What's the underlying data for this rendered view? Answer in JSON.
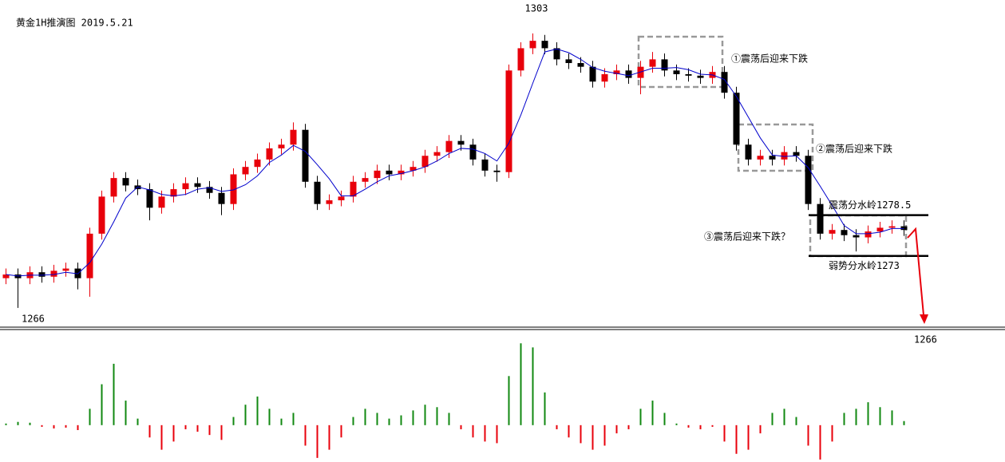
{
  "chart_data": {
    "type": "candlestick",
    "title": "黄金1H推演图  2019.5.21",
    "ylim": [
      1263.4,
      1307.5
    ],
    "up_color": "#e8000b",
    "down_color": "#000000",
    "open": [
      1270,
      1270.5,
      1270,
      1270.8,
      1270.2,
      1271,
      1271.3,
      1270,
      1276,
      1281,
      1283.5,
      1282.5,
      1282,
      1279.5,
      1281,
      1282,
      1282.8,
      1282.3,
      1281.5,
      1280,
      1284,
      1285,
      1286,
      1287.5,
      1288,
      1290,
      1283,
      1280,
      1280.5,
      1281,
      1283,
      1283.5,
      1284.5,
      1284,
      1284.5,
      1285,
      1286.5,
      1287,
      1288.5,
      1288,
      1286,
      1284.5,
      1284.3,
      1298,
      1301,
      1302,
      1301,
      1299.5,
      1299,
      1298.5,
      1296.5,
      1297.5,
      1298,
      1297,
      1298.5,
      1299.5,
      1298,
      1297.5,
      1297.3,
      1297,
      1297.8,
      1295,
      1288,
      1286,
      1286.5,
      1286,
      1287,
      1286.5,
      1280,
      1276,
      1276.5,
      1275.8,
      1275.5,
      1276.3,
      1276.8,
      1277
    ],
    "high": [
      1271.3,
      1271.3,
      1271.6,
      1271.6,
      1271.8,
      1272.1,
      1272.1,
      1276.8,
      1281.8,
      1284.3,
      1284.3,
      1283.3,
      1282.8,
      1281.8,
      1282.8,
      1283.6,
      1283.6,
      1283.1,
      1282.3,
      1284.8,
      1285.8,
      1286.8,
      1288.3,
      1288.8,
      1291,
      1290.8,
      1283.8,
      1281.3,
      1281.8,
      1283.8,
      1284.3,
      1285.3,
      1285.3,
      1285.3,
      1285.8,
      1287.3,
      1287.8,
      1289.3,
      1289.3,
      1288.8,
      1286.8,
      1285.3,
      1298.8,
      1301.8,
      1303,
      1302.8,
      1301.8,
      1300.3,
      1299.8,
      1299.3,
      1298.3,
      1298.8,
      1298.8,
      1299.3,
      1300.5,
      1300.3,
      1298.8,
      1298.3,
      1298.1,
      1298.6,
      1298.6,
      1295.8,
      1288.8,
      1287.3,
      1287.3,
      1287.8,
      1287.8,
      1287.3,
      1280.8,
      1277.3,
      1277.3,
      1276.6,
      1277.1,
      1277.6,
      1277.8,
      1277.8
    ],
    "low": [
      1269.2,
      1266,
      1269.2,
      1269.4,
      1269.4,
      1270.2,
      1268.5,
      1267.5,
      1275.2,
      1280.2,
      1281.7,
      1281.2,
      1277.8,
      1278.7,
      1280.2,
      1281.2,
      1281.5,
      1280.7,
      1278.5,
      1279.2,
      1283.2,
      1284.2,
      1285.2,
      1286.7,
      1287.2,
      1282.2,
      1279.2,
      1279.2,
      1279.7,
      1280.2,
      1282.2,
      1282.7,
      1283.2,
      1283.2,
      1283.7,
      1284.2,
      1285.7,
      1286.2,
      1287.2,
      1285.2,
      1283.7,
      1283,
      1283.5,
      1297.2,
      1300.2,
      1300.2,
      1298.7,
      1298.2,
      1297.7,
      1295.7,
      1295.7,
      1296.7,
      1296.2,
      1294.8,
      1297.7,
      1297.2,
      1296.7,
      1296.5,
      1296.2,
      1296.2,
      1294.2,
      1287.2,
      1285.2,
      1285.2,
      1285.2,
      1285.2,
      1285.7,
      1279.2,
      1275.2,
      1275.2,
      1275,
      1273.6,
      1274.7,
      1275.5,
      1276,
      1275.7
    ],
    "close": [
      1270.5,
      1270,
      1270.8,
      1270.2,
      1271,
      1271.3,
      1270,
      1276,
      1281,
      1283.5,
      1282.5,
      1282,
      1279.5,
      1281,
      1282,
      1282.8,
      1282.3,
      1281.5,
      1280,
      1284,
      1285,
      1286,
      1287.5,
      1288,
      1290,
      1283,
      1280,
      1280.5,
      1281,
      1283,
      1283.5,
      1284.5,
      1284,
      1284.5,
      1285,
      1286.5,
      1287,
      1288.5,
      1288,
      1286,
      1284.5,
      1284.3,
      1298,
      1301,
      1302,
      1301,
      1299.5,
      1299,
      1298.5,
      1296.5,
      1297.5,
      1298,
      1297,
      1298.5,
      1299.5,
      1298,
      1297.5,
      1297.3,
      1297,
      1297.8,
      1295,
      1288,
      1286,
      1286.5,
      1286,
      1287,
      1286.5,
      1280,
      1276,
      1276.5,
      1275.8,
      1275.5,
      1276.3,
      1276.8,
      1277,
      1276.5
    ],
    "ma": {
      "color": "#0000cc",
      "values": [
        1270.5,
        1270.3,
        1270.4,
        1270.4,
        1270.5,
        1270.8,
        1270.6,
        1272.1,
        1274.6,
        1277.6,
        1280.8,
        1282.3,
        1281.9,
        1281.3,
        1281.1,
        1281.3,
        1282,
        1282.2,
        1281.7,
        1281.9,
        1282.6,
        1283.8,
        1285.6,
        1286.6,
        1287.9,
        1287.1,
        1285.3,
        1283.4,
        1281.1,
        1281.1,
        1282,
        1283,
        1283.8,
        1284.1,
        1284.5,
        1285,
        1285.8,
        1286.8,
        1287.5,
        1287.4,
        1286.8,
        1285.8,
        1288.2,
        1292,
        1296.3,
        1300.5,
        1300.9,
        1300.4,
        1299.5,
        1298.4,
        1297.9,
        1297.6,
        1297.3,
        1297.8,
        1298.3,
        1298.3,
        1298.4,
        1298.1,
        1297.5,
        1297.4,
        1296.8,
        1294.5,
        1291.7,
        1288.9,
        1286.6,
        1286.4,
        1286.5,
        1284.9,
        1282.4,
        1279.8,
        1277.1,
        1276,
        1276,
        1276.2,
        1276.7,
        1276.7
      ]
    },
    "oscillator": {
      "ylim": [
        -45,
        110
      ],
      "up_color": "#118811",
      "down_color": "#e8000b",
      "values": [
        2,
        4,
        3,
        -2,
        -4,
        -3,
        -6,
        20,
        50,
        75,
        30,
        8,
        -15,
        -30,
        -20,
        -5,
        -8,
        -12,
        -18,
        10,
        25,
        35,
        20,
        8,
        15,
        -25,
        -40,
        -30,
        -15,
        10,
        20,
        15,
        8,
        12,
        18,
        25,
        22,
        15,
        -5,
        -15,
        -20,
        -22,
        60,
        100,
        95,
        40,
        -5,
        -15,
        -22,
        -30,
        -25,
        -10,
        -5,
        20,
        30,
        15,
        2,
        -3,
        -5,
        -2,
        -20,
        -35,
        -30,
        -10,
        15,
        20,
        10,
        -25,
        -42,
        -20,
        15,
        20,
        28,
        22,
        18,
        5
      ]
    },
    "levels": [
      {
        "value": 1278.5,
        "label": "震荡分水岭1278.5"
      },
      {
        "value": 1273,
        "label": "弱势分水岭1273"
      }
    ],
    "annotations": {
      "high": 1303,
      "low": 1266,
      "target": 1266,
      "box1": "①震荡后迎来下跌",
      "box2": "②震荡后迎来下跌",
      "box3": "③震荡后迎来下跌？"
    }
  }
}
